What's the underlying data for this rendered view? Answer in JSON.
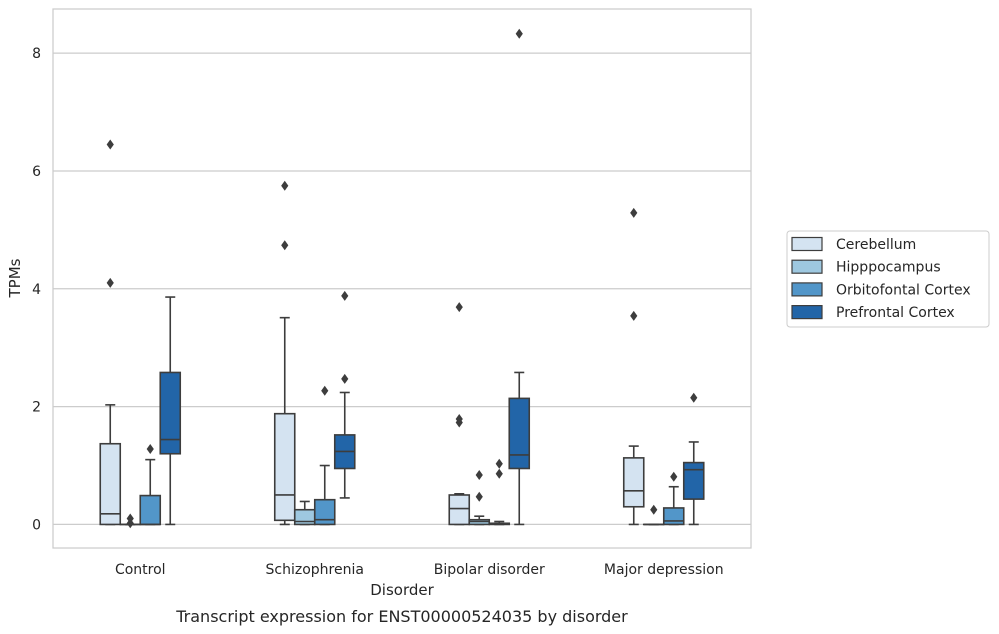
{
  "chart_data": {
    "type": "boxplot",
    "caption": "Transcript expression for ENST00000524035 by disorder",
    "xlabel": "Disorder",
    "ylabel": "TPMs",
    "ylim": [
      -0.4,
      8.75
    ],
    "yticks": [
      0,
      2,
      4,
      6,
      8
    ],
    "grid": "horizontal",
    "legend_position": "right",
    "categories": [
      "Control",
      "Schizophrenia",
      "Bipolar disorder",
      "Major depression"
    ],
    "series": [
      {
        "name": "Cerebellum",
        "color": "#d4e3f1",
        "boxes": [
          {
            "whislo": 0,
            "q1": 0,
            "med": 0.18,
            "q3": 1.37,
            "whishi": 2.03,
            "fliers": [
              4.1,
              6.45
            ]
          },
          {
            "whislo": 0,
            "q1": 0.07,
            "med": 0.5,
            "q3": 1.88,
            "whishi": 3.51,
            "fliers": [
              4.74,
              5.75
            ]
          },
          {
            "whislo": 0,
            "q1": 0,
            "med": 0.27,
            "q3": 0.5,
            "whishi": 0.52,
            "fliers": [
              1.73,
              1.79,
              3.69
            ]
          },
          {
            "whislo": 0,
            "q1": 0.3,
            "med": 0.57,
            "q3": 1.13,
            "whishi": 1.33,
            "fliers": [
              3.54,
              5.29
            ]
          }
        ]
      },
      {
        "name": "Hipppocampus",
        "color": "#9ec8e0",
        "boxes": [
          {
            "whislo": 0,
            "q1": 0,
            "med": 0,
            "q3": 0,
            "whishi": 0,
            "fliers": [
              0.02,
              0.1
            ]
          },
          {
            "whislo": 0,
            "q1": 0,
            "med": 0.05,
            "q3": 0.25,
            "whishi": 0.39,
            "fliers": []
          },
          {
            "whislo": 0,
            "q1": 0,
            "med": 0.05,
            "q3": 0.08,
            "whishi": 0.14,
            "fliers": [
              0.47,
              0.84
            ]
          },
          {
            "whislo": 0,
            "q1": 0,
            "med": 0,
            "q3": 0,
            "whishi": 0,
            "fliers": [
              0.25
            ]
          }
        ]
      },
      {
        "name": "Orbitofontal Cortex",
        "color": "#5296c9",
        "boxes": [
          {
            "whislo": 0,
            "q1": 0,
            "med": 0,
            "q3": 0.49,
            "whishi": 1.1,
            "fliers": [
              1.28
            ]
          },
          {
            "whislo": 0,
            "q1": 0,
            "med": 0.08,
            "q3": 0.42,
            "whishi": 1.0,
            "fliers": [
              2.27
            ]
          },
          {
            "whislo": 0,
            "q1": 0,
            "med": 0.01,
            "q3": 0.02,
            "whishi": 0.05,
            "fliers": [
              0.86,
              1.03
            ]
          },
          {
            "whislo": 0,
            "q1": 0,
            "med": 0.06,
            "q3": 0.28,
            "whishi": 0.64,
            "fliers": [
              0.81
            ]
          }
        ]
      },
      {
        "name": "Prefrontal Cortex",
        "color": "#2265a8",
        "boxes": [
          {
            "whislo": 0,
            "q1": 1.2,
            "med": 1.44,
            "q3": 2.58,
            "whishi": 3.86,
            "fliers": []
          },
          {
            "whislo": 0.45,
            "q1": 0.95,
            "med": 1.24,
            "q3": 1.52,
            "whishi": 2.24,
            "fliers": [
              2.47,
              3.88
            ]
          },
          {
            "whislo": 0,
            "q1": 0.95,
            "med": 1.18,
            "q3": 2.14,
            "whishi": 2.58,
            "fliers": [
              8.33
            ]
          },
          {
            "whislo": 0,
            "q1": 0.43,
            "med": 0.93,
            "q3": 1.05,
            "whishi": 1.4,
            "fliers": [
              2.15
            ]
          }
        ]
      }
    ]
  }
}
